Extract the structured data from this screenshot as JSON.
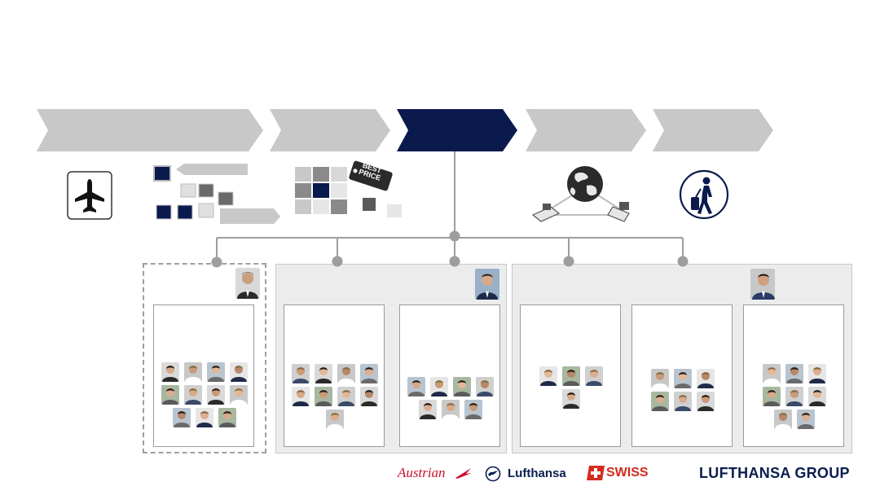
{
  "process_chain": {
    "steps": [
      {
        "name": "step-1",
        "active": false
      },
      {
        "name": "step-2",
        "active": false
      },
      {
        "name": "step-3",
        "active": false
      },
      {
        "name": "step-4",
        "active": true
      },
      {
        "name": "step-5",
        "active": false
      },
      {
        "name": "step-6",
        "active": false
      }
    ],
    "colors": {
      "inactive": "#c8c8c8",
      "active": "#0a1a4d",
      "connector": "#9e9e9e"
    }
  },
  "icons": [
    "airplane-icon",
    "cubes-schedule-icon",
    "best-price-grid-icon",
    "globe-network-icon",
    "traveler-icon"
  ],
  "best_price_tag": {
    "line1": "BEST",
    "line2": "PRICE"
  },
  "teams": [
    {
      "group": "group-left",
      "cards": [
        {
          "members": 11
        }
      ]
    },
    {
      "group": "group-middle",
      "cards": [
        {
          "members": 9
        },
        {
          "members": 7
        }
      ]
    },
    {
      "group": "group-right",
      "cards": [
        {
          "members": 4
        },
        {
          "members": 6
        },
        {
          "members": 8
        }
      ]
    }
  ],
  "footer": {
    "austrian": "Austrian",
    "lufthansa": "Lufthansa",
    "swiss": "SWISS",
    "group": "LUFTHANSA GROUP",
    "colors": {
      "austrian": "#c8102e",
      "lufthansa": "#0a1e4e",
      "swiss": "#d52b1e"
    }
  }
}
